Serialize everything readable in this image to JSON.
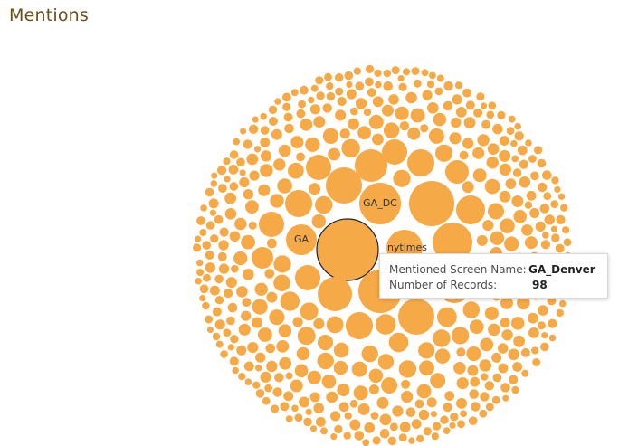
{
  "page": {
    "title": "Mentions"
  },
  "colors": {
    "bubble": "#f5a947",
    "highlight_stroke": "#222222",
    "title": "#6b4e16"
  },
  "chart_data": {
    "type": "bubble",
    "title": "Mentions",
    "measure": "Number of Records",
    "labeled_bubbles": [
      {
        "name": "GA_DC",
        "value": ""
      },
      {
        "name": "GA",
        "value": ""
      },
      {
        "name": "nytimes",
        "value": ""
      },
      {
        "name": "GA_Denver",
        "value": 98,
        "highlighted": true
      }
    ]
  },
  "tooltip": {
    "rows": [
      {
        "label": "Mentioned Screen Name:",
        "value": "GA_Denver"
      },
      {
        "label": "Number of Records:",
        "value": "98"
      }
    ]
  }
}
